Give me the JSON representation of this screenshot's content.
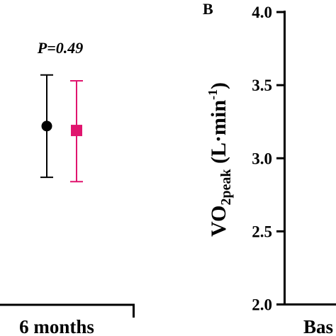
{
  "chart_data": [
    {
      "type": "scatter",
      "partial": true,
      "annotation": "P=0.49",
      "xlabel": "6 months",
      "series": [
        {
          "color": "#000000",
          "marker": "circle",
          "mean": 3.22,
          "ci": [
            2.87,
            3.57
          ]
        },
        {
          "color": "#e0156e",
          "marker": "square",
          "mean": 3.19,
          "ci": [
            2.84,
            3.53
          ]
        }
      ]
    },
    {
      "type": "scatter",
      "partial": true,
      "panel_label": "B",
      "ylabel_main": "VO",
      "ylabel_sub": "2peak",
      "ylabel_units_open": " (L",
      "ylabel_dot": "·",
      "ylabel_units_base": "min",
      "ylabel_sup": "-1",
      "ylabel_close": ")",
      "ylim": [
        2.0,
        4.0
      ],
      "yticks": [
        "2.0",
        "2.5",
        "3.0",
        "3.5",
        "4.0"
      ],
      "xlabel": "Bas"
    }
  ]
}
